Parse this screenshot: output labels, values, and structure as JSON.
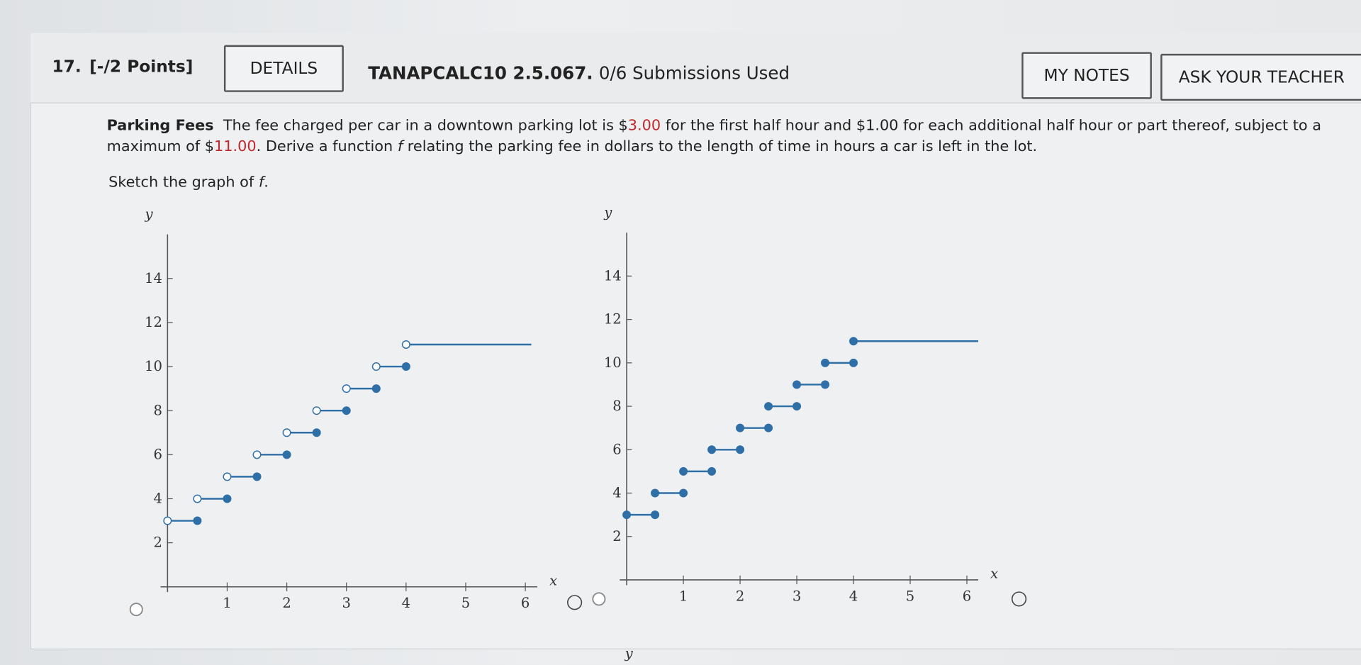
{
  "header": {
    "number": "17.",
    "points": "[-/2 Points]",
    "details": "DETAILS",
    "code": "TANAPCALC10 2.5.067.",
    "submissions": "0/6 Submissions Used",
    "my_notes": "MY NOTES",
    "ask_teacher": "ASK YOUR TEACHER"
  },
  "problem": {
    "text": [
      "Parking Fees",
      "The fee charged per car in a downtown parking lot is $",
      "3.00",
      " for the first half hour and $1.00 for each additional half hour or part thereof, subject to a maximum of $",
      "11.00",
      ". Derive a function ",
      "f",
      " relating the parking fee in dollars to the length of time in hours a car is left in the lot."
    ],
    "prompt": [
      "Sketch the graph of ",
      "f",
      "."
    ]
  },
  "graphs": [
    {
      "x_label": "x",
      "y_label": "y",
      "xlim": [
        0,
        6.2
      ],
      "ylim": [
        0,
        16
      ],
      "xticks": [
        1,
        2,
        3,
        4,
        5,
        6
      ],
      "yticks": [
        2,
        4,
        6,
        8,
        10,
        12,
        14
      ],
      "color": "#2f6fa8",
      "left_endpoint": "open",
      "right_endpoint": "closed",
      "steps": [
        {
          "x": [
            0,
            0.5
          ],
          "y": 3
        },
        {
          "x": [
            0.5,
            1
          ],
          "y": 4
        },
        {
          "x": [
            1,
            1.5
          ],
          "y": 5
        },
        {
          "x": [
            1.5,
            2
          ],
          "y": 6
        },
        {
          "x": [
            2,
            2.5
          ],
          "y": 7
        },
        {
          "x": [
            2.5,
            3
          ],
          "y": 8
        },
        {
          "x": [
            3,
            3.5
          ],
          "y": 9
        },
        {
          "x": [
            3.5,
            4
          ],
          "y": 10
        },
        {
          "x": [
            4,
            6.1
          ],
          "y": 11
        }
      ]
    },
    {
      "x_label": "x",
      "y_label": "y",
      "xlim": [
        0,
        6.2
      ],
      "ylim": [
        0,
        16
      ],
      "xticks": [
        1,
        2,
        3,
        4,
        5,
        6
      ],
      "yticks": [
        2,
        4,
        6,
        8,
        10,
        12,
        14
      ],
      "color": "#2f6fa8",
      "left_endpoint": "closed",
      "right_endpoint": "closed",
      "steps": [
        {
          "x": [
            0,
            0.5
          ],
          "y": 3
        },
        {
          "x": [
            0.5,
            1
          ],
          "y": 4
        },
        {
          "x": [
            1,
            1.5
          ],
          "y": 5
        },
        {
          "x": [
            1.5,
            2
          ],
          "y": 6
        },
        {
          "x": [
            2,
            2.5
          ],
          "y": 7
        },
        {
          "x": [
            2.5,
            3
          ],
          "y": 8
        },
        {
          "x": [
            3,
            3.5
          ],
          "y": 9
        },
        {
          "x": [
            3.5,
            4
          ],
          "y": 10
        },
        {
          "x": [
            4,
            6.2
          ],
          "y": 11
        }
      ]
    }
  ],
  "next_graph": {
    "y_label": "y"
  }
}
